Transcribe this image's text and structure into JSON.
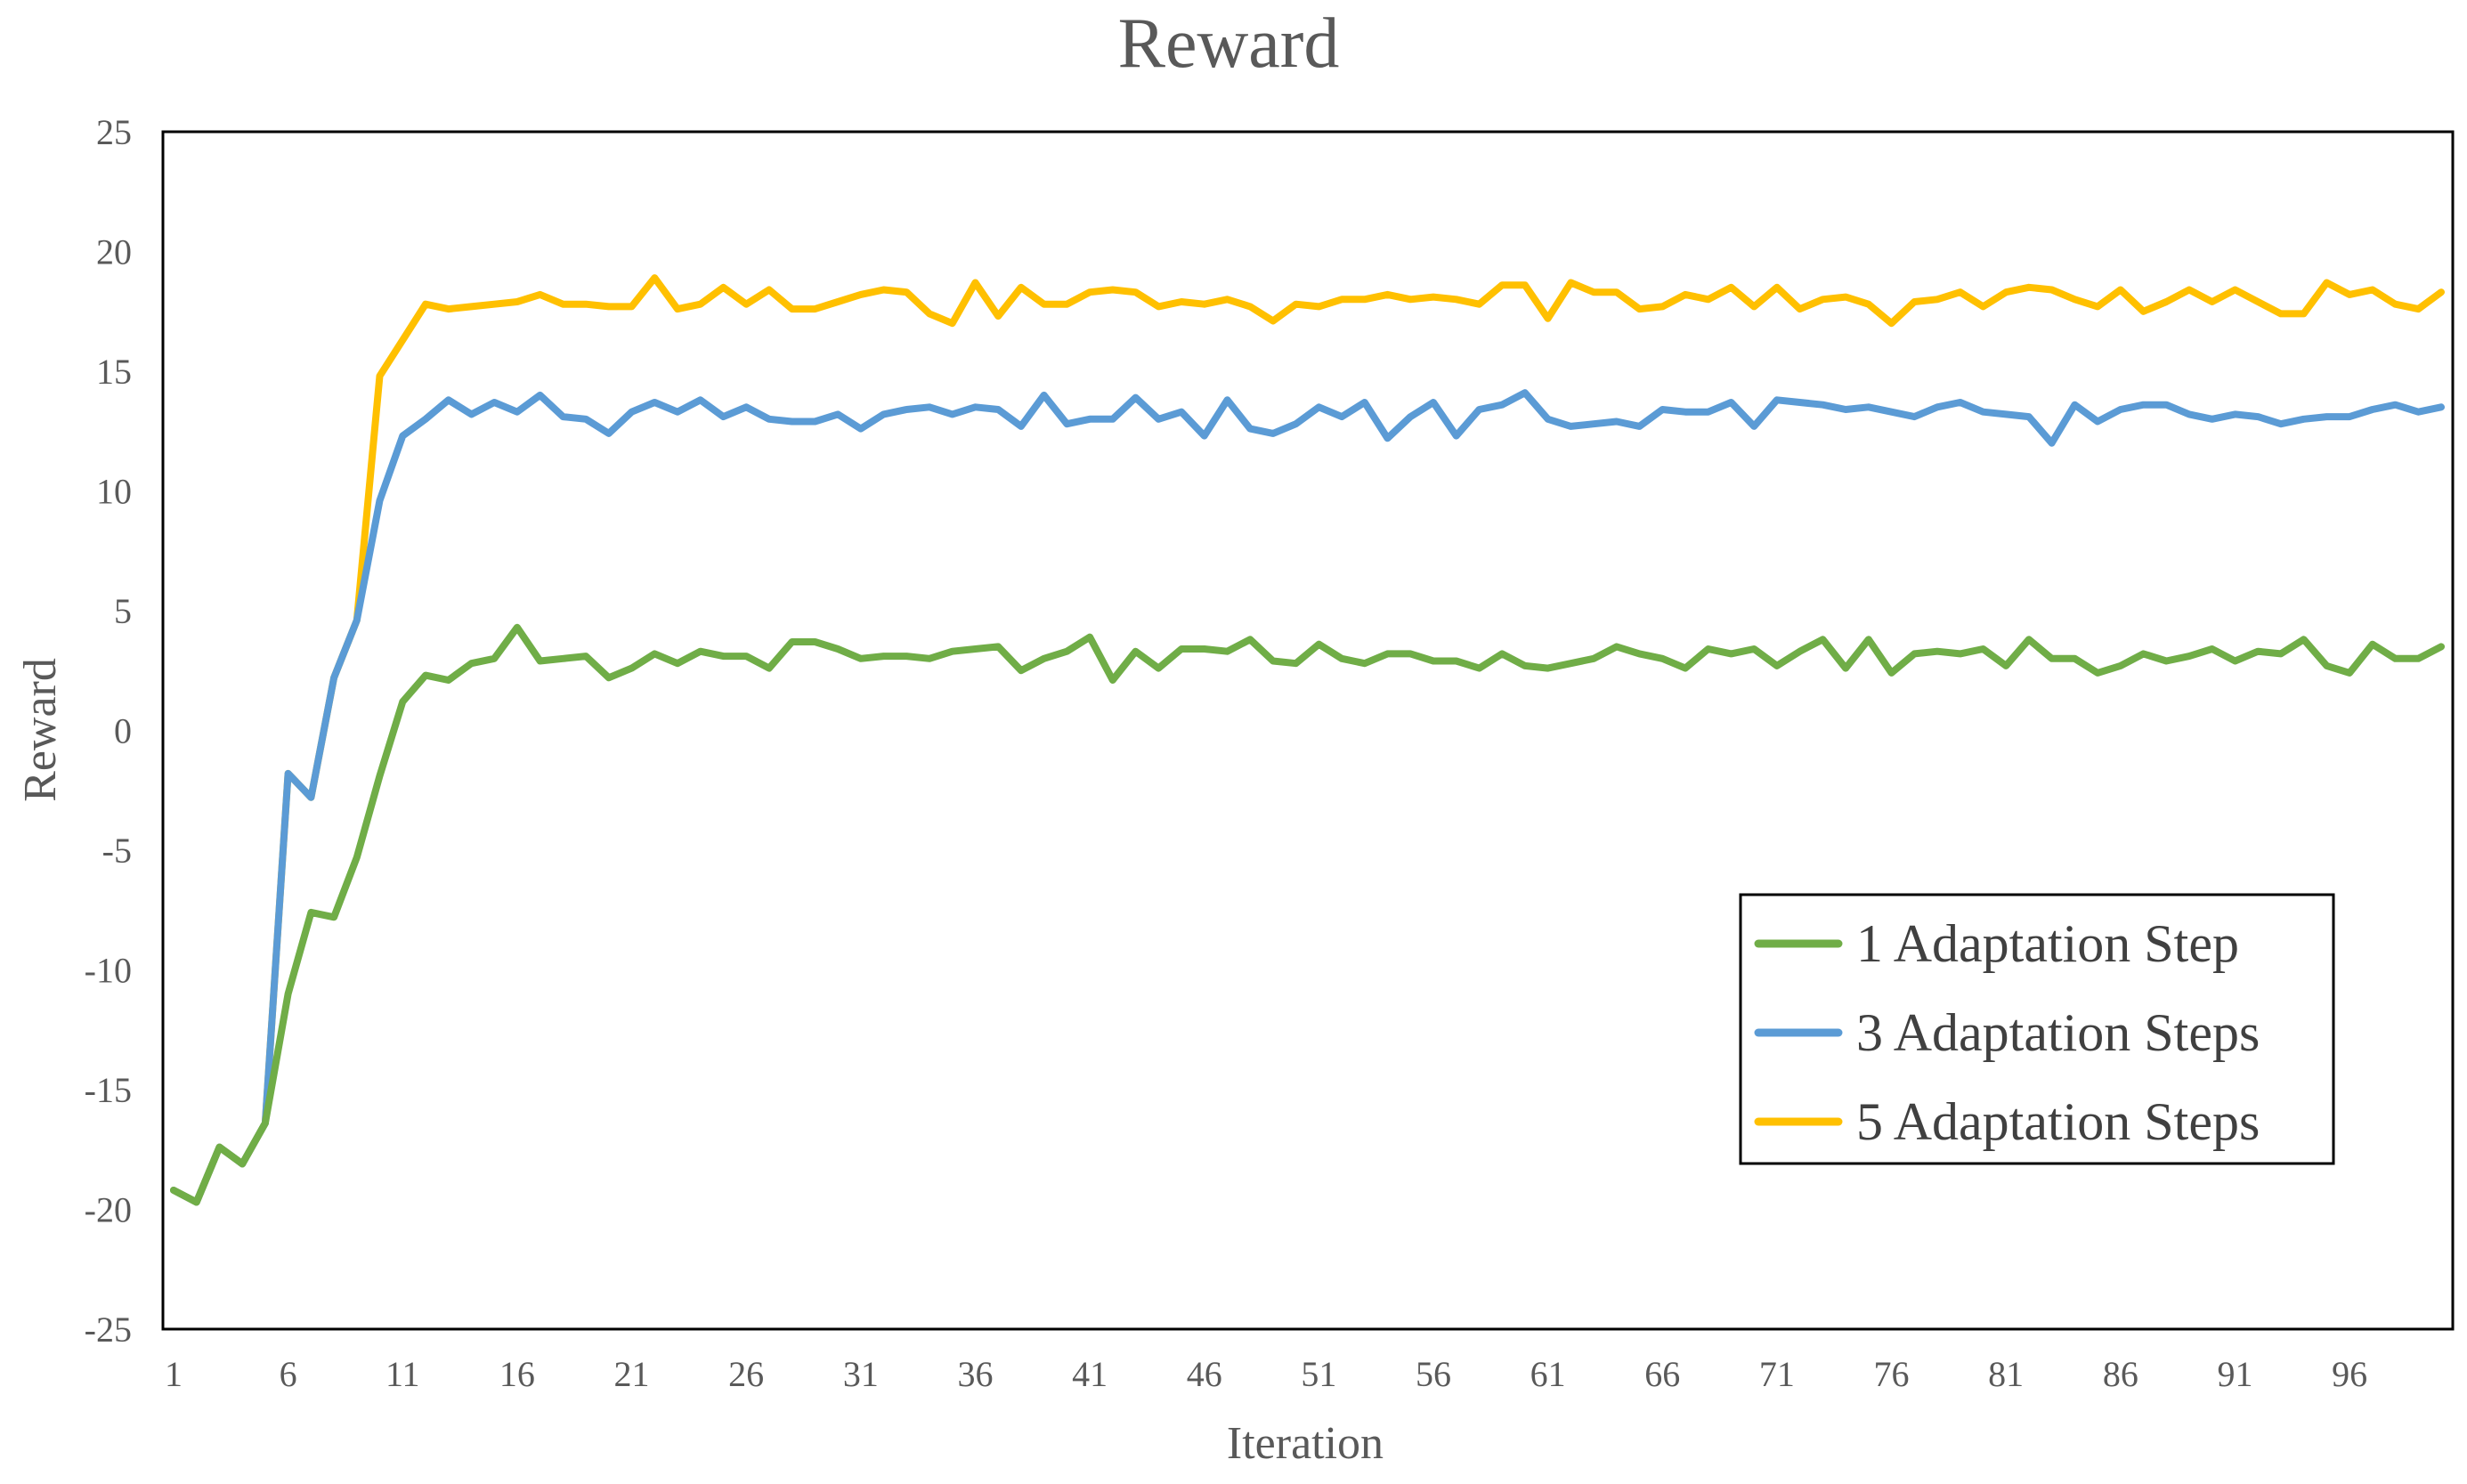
{
  "chart_data": {
    "type": "line",
    "title": "Reward",
    "xlabel": "Iteration",
    "ylabel": "Reward",
    "ylim": [
      -25,
      25
    ],
    "yticks": [
      -25,
      -20,
      -15,
      -10,
      -5,
      0,
      5,
      10,
      15,
      20,
      25
    ],
    "xlim": [
      1,
      100
    ],
    "xticks": [
      1,
      6,
      11,
      16,
      21,
      26,
      31,
      36,
      41,
      46,
      51,
      56,
      61,
      66,
      71,
      76,
      81,
      86,
      91,
      96
    ],
    "grid": false,
    "legend_position": "bottom-right",
    "x": [
      1,
      2,
      3,
      4,
      5,
      6,
      7,
      8,
      9,
      10,
      11,
      12,
      13,
      14,
      15,
      16,
      17,
      18,
      19,
      20,
      21,
      22,
      23,
      24,
      25,
      26,
      27,
      28,
      29,
      30,
      31,
      32,
      33,
      34,
      35,
      36,
      37,
      38,
      39,
      40,
      41,
      42,
      43,
      44,
      45,
      46,
      47,
      48,
      49,
      50,
      51,
      52,
      53,
      54,
      55,
      56,
      57,
      58,
      59,
      60,
      61,
      62,
      63,
      64,
      65,
      66,
      67,
      68,
      69,
      70,
      71,
      72,
      73,
      74,
      75,
      76,
      77,
      78,
      79,
      80,
      81,
      82,
      83,
      84,
      85,
      86,
      87,
      88,
      89,
      90,
      91,
      92,
      93,
      94,
      95,
      96,
      97,
      98,
      99,
      100
    ],
    "series": [
      {
        "name": "1 Adaptation Step",
        "color": "#70ad47",
        "values": [
          -19.2,
          -19.7,
          -17.4,
          -18.1,
          -16.4,
          -11.0,
          -7.6,
          -7.8,
          -5.3,
          -1.9,
          1.2,
          2.3,
          2.1,
          2.8,
          3.0,
          4.3,
          2.9,
          3.0,
          3.1,
          2.2,
          2.6,
          3.2,
          2.8,
          3.3,
          3.1,
          3.1,
          2.6,
          3.7,
          3.7,
          3.4,
          3.0,
          3.1,
          3.1,
          3.0,
          3.3,
          3.4,
          3.5,
          2.5,
          3.0,
          3.3,
          3.9,
          2.1,
          3.3,
          2.6,
          3.4,
          3.4,
          3.3,
          3.8,
          2.9,
          2.8,
          3.6,
          3.0,
          2.8,
          3.2,
          3.2,
          2.9,
          2.9,
          2.6,
          3.2,
          2.7,
          2.6,
          2.8,
          3.0,
          3.5,
          3.2,
          3.0,
          2.6,
          3.4,
          3.2,
          3.4,
          2.7,
          3.3,
          3.8,
          2.6,
          3.8,
          2.4,
          3.2,
          3.3,
          3.2,
          3.4,
          2.7,
          3.8,
          3.0,
          3.0,
          2.4,
          2.7,
          3.2,
          2.9,
          3.1,
          3.4,
          2.9,
          3.3,
          3.2,
          3.8,
          2.7,
          2.4,
          3.6,
          3.0,
          3.0,
          3.5
        ]
      },
      {
        "name": "3 Adaptation Steps",
        "color": "#5b9bd5",
        "values": [
          -19.2,
          -19.7,
          -17.4,
          -18.1,
          -16.4,
          -1.8,
          -2.8,
          2.2,
          4.6,
          9.6,
          12.3,
          13.0,
          13.8,
          13.2,
          13.7,
          13.3,
          14.0,
          13.1,
          13.0,
          12.4,
          13.3,
          13.7,
          13.3,
          13.8,
          13.1,
          13.5,
          13.0,
          12.9,
          12.9,
          13.2,
          12.6,
          13.2,
          13.4,
          13.5,
          13.2,
          13.5,
          13.4,
          12.7,
          14.0,
          12.8,
          13.0,
          13.0,
          13.9,
          13.0,
          13.3,
          12.3,
          13.8,
          12.6,
          12.4,
          12.8,
          13.5,
          13.1,
          13.7,
          12.2,
          13.1,
          13.7,
          12.3,
          13.4,
          13.6,
          14.1,
          13.0,
          12.7,
          12.8,
          12.9,
          12.7,
          13.4,
          13.3,
          13.3,
          13.7,
          12.7,
          13.8,
          13.7,
          13.6,
          13.4,
          13.5,
          13.3,
          13.1,
          13.5,
          13.7,
          13.3,
          13.2,
          13.1,
          12.0,
          13.6,
          12.9,
          13.4,
          13.6,
          13.6,
          13.2,
          13.0,
          13.2,
          13.1,
          12.8,
          13.0,
          13.1,
          13.1,
          13.4,
          13.6,
          13.3,
          13.5
        ]
      },
      {
        "name": "5 Adaptation Steps",
        "color": "#ffc000",
        "values": [
          -19.2,
          -19.7,
          -17.4,
          -18.1,
          -16.4,
          -1.8,
          -2.8,
          2.2,
          4.6,
          14.8,
          16.3,
          17.8,
          17.6,
          17.7,
          17.8,
          17.9,
          18.2,
          17.8,
          17.8,
          17.7,
          17.7,
          18.9,
          17.6,
          17.8,
          18.5,
          17.8,
          18.4,
          17.6,
          17.6,
          17.9,
          18.2,
          18.4,
          18.3,
          17.4,
          17.0,
          18.7,
          17.3,
          18.5,
          17.8,
          17.8,
          18.3,
          18.4,
          18.3,
          17.7,
          17.9,
          17.8,
          18.0,
          17.7,
          17.1,
          17.8,
          17.7,
          18.0,
          18.0,
          18.2,
          18.0,
          18.1,
          18.0,
          17.8,
          18.6,
          18.6,
          17.2,
          18.7,
          18.3,
          18.3,
          17.6,
          17.7,
          18.2,
          18.0,
          18.5,
          17.7,
          18.5,
          17.6,
          18.0,
          18.1,
          17.8,
          17.0,
          17.9,
          18.0,
          18.3,
          17.7,
          18.3,
          18.5,
          18.4,
          18.0,
          17.7,
          18.4,
          17.5,
          17.9,
          18.4,
          17.9,
          18.4,
          17.9,
          17.4,
          17.4,
          18.7,
          18.2,
          18.4,
          17.8,
          17.6,
          18.3
        ]
      }
    ]
  }
}
